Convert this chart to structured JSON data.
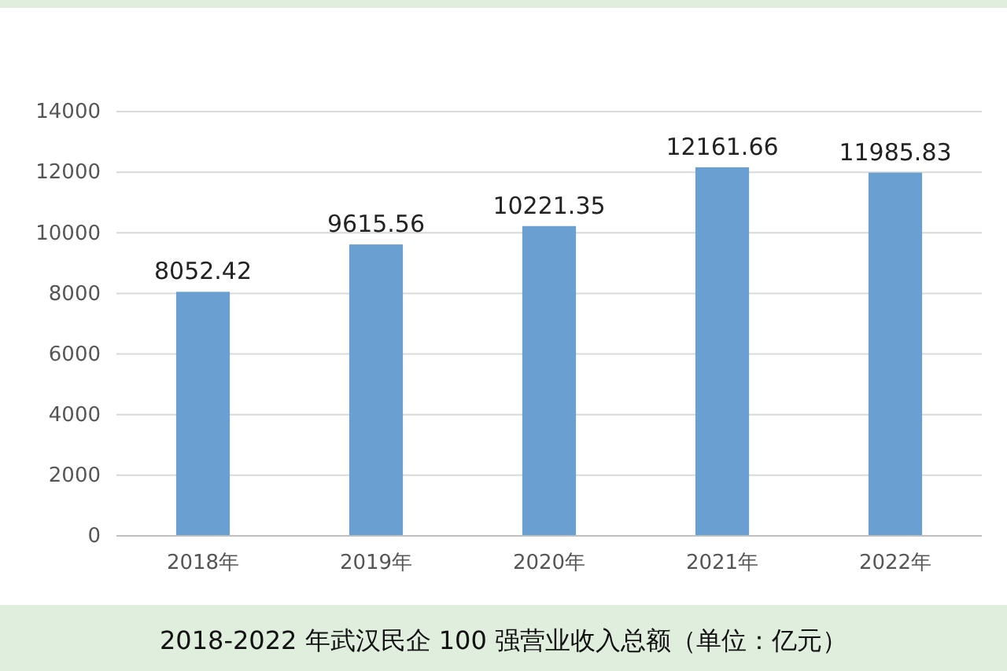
{
  "chart_data": {
    "type": "bar",
    "title": "2018-2022 年武汉民企 100 强营业收入总额（单位：亿元）",
    "categories": [
      "2018年",
      "2019年",
      "2020年",
      "2021年",
      "2022年"
    ],
    "values": [
      8052.42,
      9615.56,
      10221.35,
      12161.66,
      11985.83
    ],
    "color": "#6a9fd2",
    "ylim": [
      0,
      14000
    ],
    "yticks": [
      0,
      2000,
      4000,
      6000,
      8000,
      10000,
      12000,
      14000
    ],
    "grid": "y",
    "data_labels": true
  }
}
